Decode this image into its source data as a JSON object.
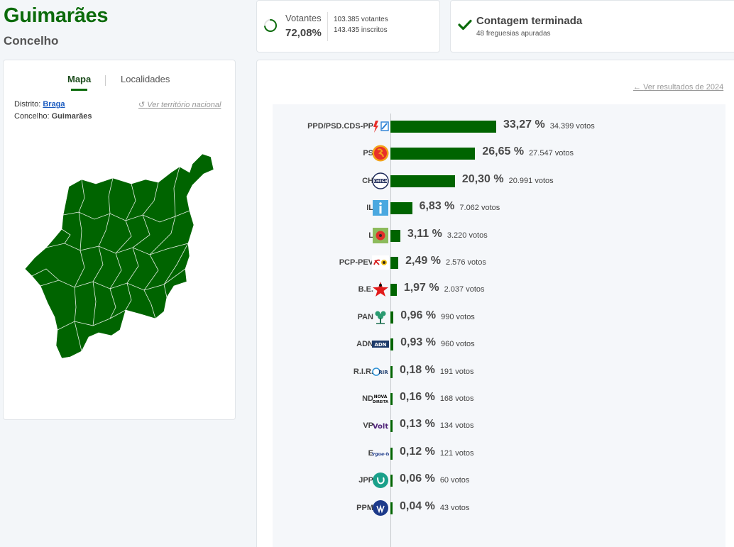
{
  "header": {
    "title": "Guimarães",
    "subtitle": "Concelho"
  },
  "voters": {
    "label": "Votantes",
    "percent": "72,08%",
    "percent_value": 72.08,
    "votes_line": "103.385 votantes",
    "registered_line": "143.435 inscritos"
  },
  "count": {
    "title": "Contagem terminada",
    "subtitle": "48 freguesias apuradas"
  },
  "map_panel": {
    "tabs": [
      {
        "label": "Mapa"
      },
      {
        "label": "Localidades"
      }
    ],
    "district_label": "Distrito:",
    "district_value": "Braga",
    "council_label": "Concelho:",
    "council_value": "Guimarães",
    "national_link": "Ver território nacional",
    "map_color": "#006400"
  },
  "results": {
    "previous_link": "Ver resultados de 2024",
    "bar_color": "#006400",
    "parties": [
      {
        "name": "PPD/PSD.CDS-PP",
        "percent": "33,27 %",
        "value": 33.27,
        "votes": "34.399 votos",
        "logo": "psd-cds-logo"
      },
      {
        "name": "PS",
        "percent": "26,65 %",
        "value": 26.65,
        "votes": "27.547 votos",
        "logo": "ps-logo"
      },
      {
        "name": "CH",
        "percent": "20,30 %",
        "value": 20.3,
        "votes": "20.991 votos",
        "logo": "chega-logo"
      },
      {
        "name": "IL",
        "percent": "6,83 %",
        "value": 6.83,
        "votes": "7.062 votos",
        "logo": "il-logo"
      },
      {
        "name": "L",
        "percent": "3,11 %",
        "value": 3.11,
        "votes": "3.220 votos",
        "logo": "livre-logo"
      },
      {
        "name": "PCP-PEV",
        "percent": "2,49 %",
        "value": 2.49,
        "votes": "2.576 votos",
        "logo": "cdu-logo"
      },
      {
        "name": "B.E.",
        "percent": "1,97 %",
        "value": 1.97,
        "votes": "2.037 votos",
        "logo": "be-logo"
      },
      {
        "name": "PAN",
        "percent": "0,96 %",
        "value": 0.96,
        "votes": "990 votos",
        "logo": "pan-logo"
      },
      {
        "name": "ADN",
        "percent": "0,93 %",
        "value": 0.93,
        "votes": "960 votos",
        "logo": "adn-logo"
      },
      {
        "name": "R.I.R.",
        "percent": "0,18 %",
        "value": 0.18,
        "votes": "191 votos",
        "logo": "rir-logo"
      },
      {
        "name": "ND",
        "percent": "0,16 %",
        "value": 0.16,
        "votes": "168 votos",
        "logo": "nd-logo"
      },
      {
        "name": "VP",
        "percent": "0,13 %",
        "value": 0.13,
        "votes": "134 votos",
        "logo": "volt-logo"
      },
      {
        "name": "E",
        "percent": "0,12 %",
        "value": 0.12,
        "votes": "121 votos",
        "logo": "ergue-te-logo"
      },
      {
        "name": "JPP",
        "percent": "0,06 %",
        "value": 0.06,
        "votes": "60 votos",
        "logo": "jpp-logo"
      },
      {
        "name": "PPM",
        "percent": "0,04 %",
        "value": 0.04,
        "votes": "43 votos",
        "logo": "ppm-logo"
      }
    ]
  },
  "chart_data": {
    "type": "bar",
    "orientation": "horizontal",
    "categories": [
      "PPD/PSD.CDS-PP",
      "PS",
      "CH",
      "IL",
      "L",
      "PCP-PEV",
      "B.E.",
      "PAN",
      "ADN",
      "R.I.R.",
      "ND",
      "VP",
      "E",
      "JPP",
      "PPM"
    ],
    "values": [
      33.27,
      26.65,
      20.3,
      6.83,
      3.11,
      2.49,
      1.97,
      0.96,
      0.93,
      0.18,
      0.16,
      0.13,
      0.12,
      0.06,
      0.04
    ],
    "votes": [
      34399,
      27547,
      20991,
      7062,
      3220,
      2576,
      2037,
      990,
      960,
      191,
      168,
      134,
      121,
      60,
      43
    ],
    "xlabel": "",
    "ylabel": "",
    "grid": false
  }
}
